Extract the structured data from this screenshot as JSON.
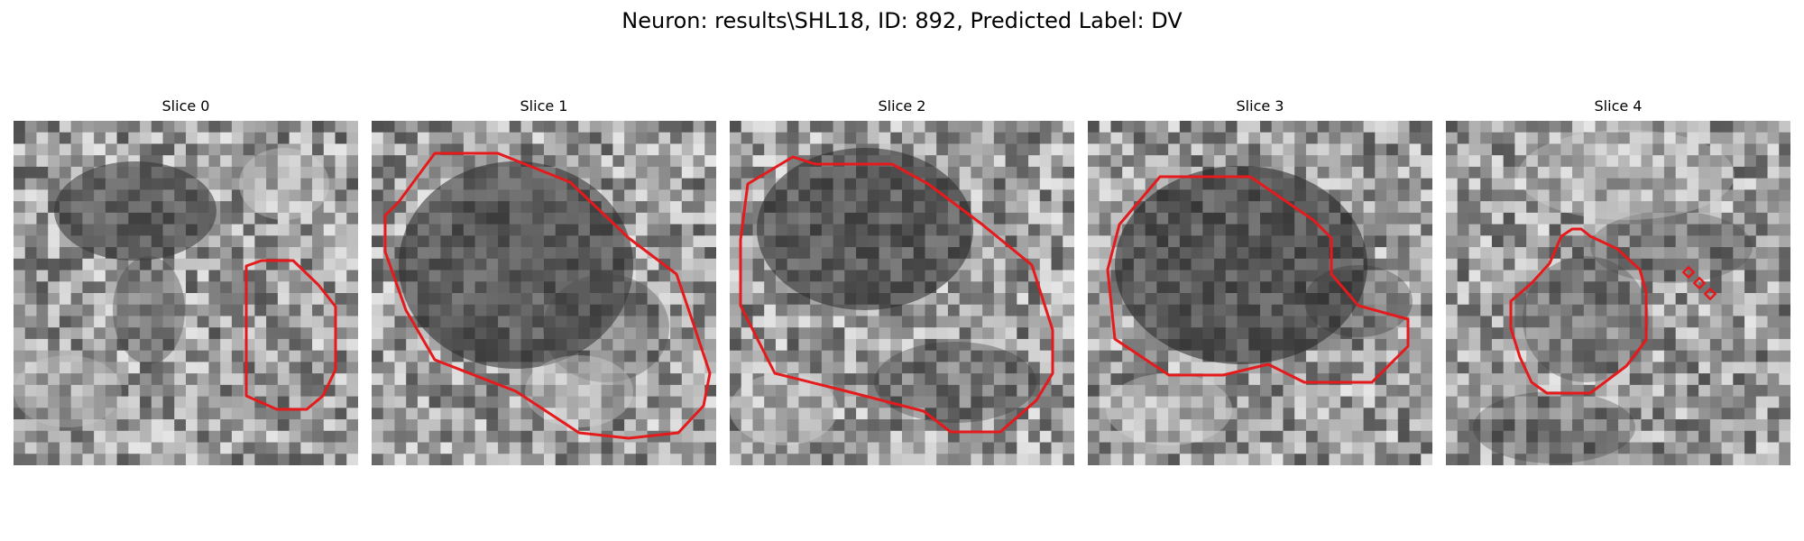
{
  "figure": {
    "title": "Neuron: results\\SHL18, ID: 892, Predicted Label: DV"
  },
  "panels": [
    {
      "title": "Slice 0"
    },
    {
      "title": "Slice 1"
    },
    {
      "title": "Slice 2"
    },
    {
      "title": "Slice 3"
    },
    {
      "title": "Slice 4"
    }
  ],
  "colors": {
    "contour": "#e41a1c",
    "background": "#ffffff"
  }
}
